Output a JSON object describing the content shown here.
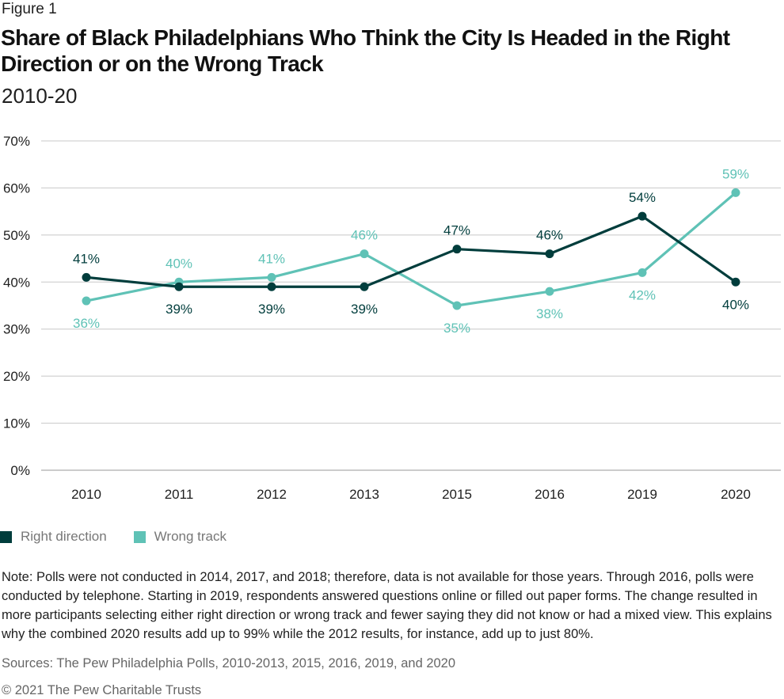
{
  "header": {
    "figure_label": "Figure 1",
    "title": "Share of Black Philadelphians Who Think the City Is Headed in the Right Direction or on the Wrong Track",
    "subtitle": "2010-20"
  },
  "chart_data": {
    "type": "line",
    "title": "Share of Black Philadelphians Who Think the City Is Headed in the Right Direction or on the Wrong Track",
    "subtitle": "2010-20",
    "xlabel": "",
    "ylabel": "",
    "categories": [
      "2010",
      "2011",
      "2012",
      "2013",
      "2015",
      "2016",
      "2019",
      "2020"
    ],
    "yticks": [
      "0%",
      "10%",
      "20%",
      "30%",
      "40%",
      "50%",
      "60%",
      "70%"
    ],
    "ylim": [
      0,
      70
    ],
    "grid": true,
    "legend_position": "bottom-left",
    "series": [
      {
        "name": "Right direction",
        "color": "#003d3c",
        "values": [
          41,
          39,
          39,
          39,
          47,
          46,
          54,
          40
        ],
        "labels": [
          "41%",
          "39%",
          "39%",
          "39%",
          "47%",
          "46%",
          "54%",
          "40%"
        ],
        "label_pos": [
          "above",
          "below",
          "below",
          "below",
          "above",
          "above",
          "above",
          "below"
        ]
      },
      {
        "name": "Wrong track",
        "color": "#5fc2b6",
        "values": [
          36,
          40,
          41,
          46,
          35,
          38,
          42,
          59
        ],
        "labels": [
          "36%",
          "40%",
          "41%",
          "46%",
          "35%",
          "38%",
          "42%",
          "59%"
        ],
        "label_pos": [
          "below",
          "above",
          "above",
          "above",
          "below",
          "below",
          "below",
          "above"
        ]
      }
    ]
  },
  "legend": {
    "items": [
      {
        "label": "Right direction",
        "color": "#003d3c"
      },
      {
        "label": "Wrong track",
        "color": "#5fc2b6"
      }
    ]
  },
  "footer": {
    "note": "Note: Polls were not conducted in 2014, 2017, and 2018; therefore, data is not available for those years. Through 2016, polls were conducted by telephone. Starting in 2019, respondents answered questions online or filled out paper forms. The change resulted in more participants selecting either right direction or wrong track and fewer saying they did not know or had a mixed view. This explains why the combined 2020 results add up to 99% while the 2012 results, for instance, add up to just 80%.",
    "sources": "Sources: The Pew Philadelphia Polls, 2010-2013, 2015, 2016, 2019, and 2020",
    "copyright": "© 2021 The Pew Charitable Trusts"
  }
}
